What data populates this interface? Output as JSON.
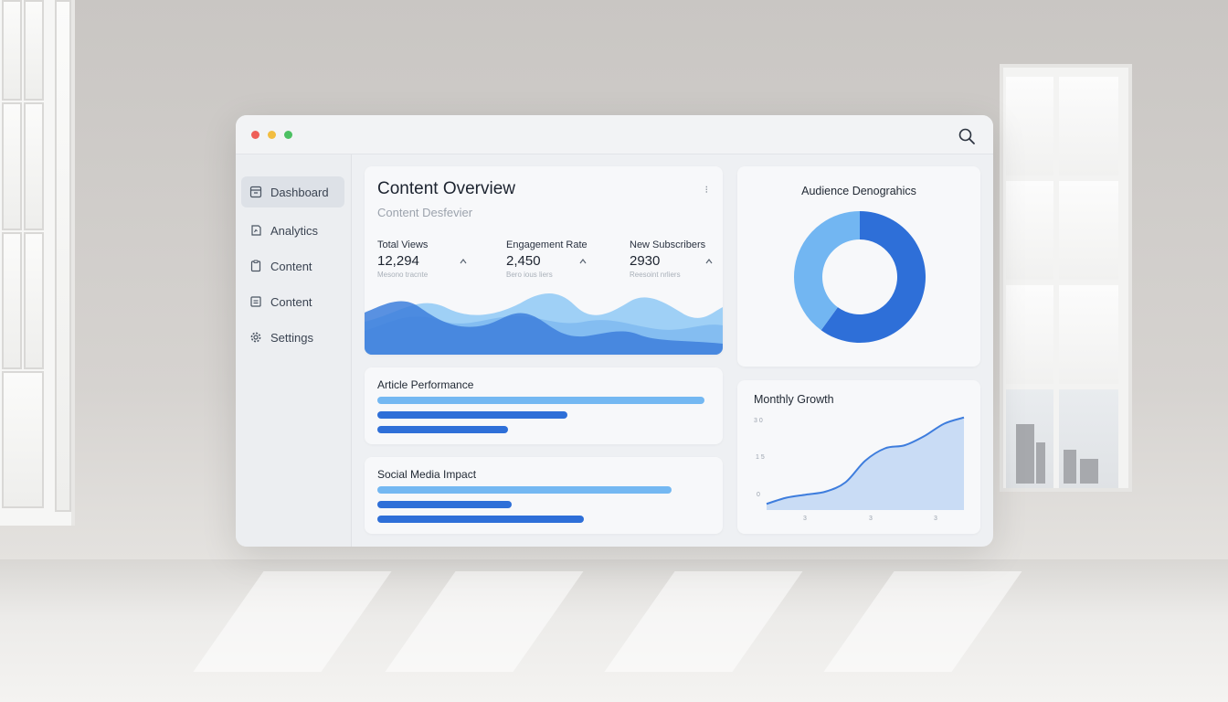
{
  "window": {
    "controls": {
      "close_color": "#ee5e58",
      "minimize_color": "#f2bd40",
      "maximize_color": "#4cc062"
    },
    "search_icon": "search-icon"
  },
  "sidebar": {
    "items": [
      {
        "label": "Dashboard",
        "icon": "dashboard-icon",
        "active": true
      },
      {
        "label": "Analytics",
        "icon": "analytics-icon",
        "active": false
      },
      {
        "label": "Content",
        "icon": "clipboard-icon",
        "active": false
      },
      {
        "label": "Content",
        "icon": "document-icon",
        "active": false
      },
      {
        "label": "Settings",
        "icon": "gear-icon",
        "active": false
      }
    ]
  },
  "overview": {
    "title": "Content Overview",
    "subtitle": "Content Desfevier",
    "menu_symbol": "⁝",
    "stats": [
      {
        "label": "Total Views",
        "value": "12,294",
        "note": "Mesono tracnte"
      },
      {
        "label": "Engagement Rate",
        "value": "2,450",
        "note": "Bero ious liers"
      },
      {
        "label": "New Subscribers",
        "value": "2930",
        "note": "Reesoint nrliers"
      }
    ]
  },
  "demographics": {
    "title": "Audience Denograhics",
    "chart_data": {
      "type": "pie",
      "donut": true,
      "slices": [
        {
          "value": 60,
          "color": "#2e6fd8"
        },
        {
          "value": 40,
          "color": "#72b6f2"
        }
      ]
    }
  },
  "article_performance": {
    "title": "Article Performance",
    "chart_data": {
      "type": "bar",
      "orientation": "horizontal",
      "values": [
        1.0,
        0.58,
        0.4
      ],
      "colors": [
        "#74b8f2",
        "#2e6fd8",
        "#2e6fd8"
      ]
    }
  },
  "social_media": {
    "title": "Social Media Impact",
    "chart_data": {
      "type": "bar",
      "orientation": "horizontal",
      "values": [
        0.9,
        0.41,
        0.63
      ],
      "colors": [
        "#74b8f2",
        "#2e6fd8",
        "#2e6fd8"
      ]
    }
  },
  "monthly_growth": {
    "title": "Monthly Growth",
    "chart_data": {
      "type": "area",
      "y_ticks": [
        "3 0",
        "1 5",
        "0"
      ],
      "x_ticks": [
        "3",
        "3",
        "3"
      ],
      "x": [
        0,
        1,
        2,
        3,
        4,
        5,
        6,
        7,
        8,
        9,
        10
      ],
      "y": [
        2,
        4,
        5,
        6,
        9,
        16,
        20,
        21,
        24,
        28,
        30
      ],
      "ylim": [
        0,
        32
      ],
      "line_color": "#3e7ddd",
      "fill_color": "#c9dcf5"
    }
  },
  "overview_wave": {
    "colors": [
      "#9fd0f6",
      "#7fbaf0",
      "#3d7fdc"
    ]
  }
}
